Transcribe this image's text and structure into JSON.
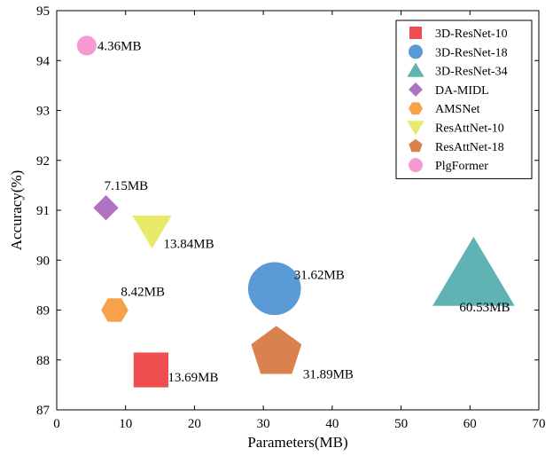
{
  "chart_data": {
    "type": "scatter",
    "xlabel": "Parameters(MB)",
    "ylabel": "Accuracy(%)",
    "xlim": [
      0,
      70
    ],
    "ylim": [
      87,
      95
    ],
    "xticks": [
      0,
      10,
      20,
      30,
      40,
      50,
      60,
      70
    ],
    "yticks": [
      87,
      88,
      89,
      90,
      91,
      92,
      93,
      94,
      95
    ],
    "grid": false,
    "legend_position": "top-right",
    "series": [
      {
        "name": "3D-ResNet-10",
        "marker": "square",
        "color": "#f04e4e",
        "x": 13.69,
        "y": 87.8,
        "label": "13.69MB"
      },
      {
        "name": "3D-ResNet-18",
        "marker": "circle",
        "color": "#5b9bd5",
        "x": 31.62,
        "y": 89.43,
        "label": "31.62MB"
      },
      {
        "name": "3D-ResNet-34",
        "marker": "triangle-up",
        "color": "#5fb3b3",
        "x": 60.53,
        "y": 89.7,
        "label": "60.53MB"
      },
      {
        "name": "DA-MIDL",
        "marker": "diamond",
        "color": "#b072c2",
        "x": 7.15,
        "y": 91.05,
        "label": "7.15MB"
      },
      {
        "name": "AMSNet",
        "marker": "hexagon",
        "color": "#f7a24a",
        "x": 8.42,
        "y": 89.0,
        "label": "8.42MB"
      },
      {
        "name": "ResAttNet-10",
        "marker": "triangle-down",
        "color": "#eaea6a",
        "x": 13.84,
        "y": 90.6,
        "label": "13.84MB"
      },
      {
        "name": "ResAttNet-18",
        "marker": "pentagon",
        "color": "#d9824f",
        "x": 31.89,
        "y": 88.15,
        "label": "31.89MB"
      },
      {
        "name": "PlgFormer",
        "marker": "circle",
        "color": "#f59ad3",
        "x": 4.36,
        "y": 94.3,
        "label": "4.36MB"
      }
    ]
  }
}
